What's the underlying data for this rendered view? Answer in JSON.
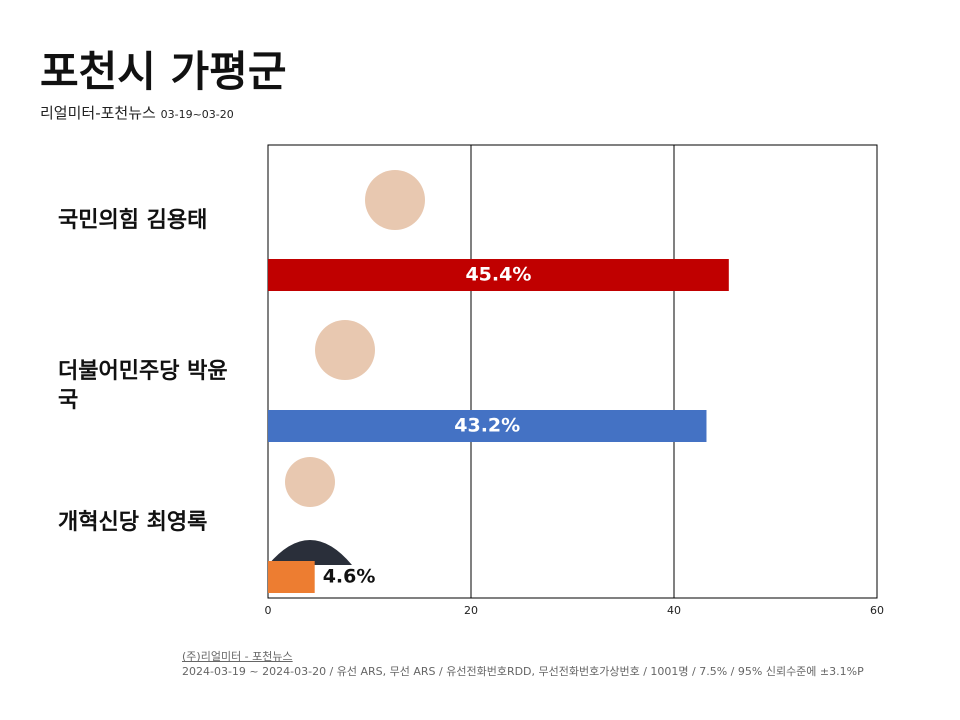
{
  "chart_data": {
    "type": "hbar",
    "title": "포천시 가평군",
    "subtitle": "리얼미터-포천뉴스",
    "date_range": "03-19~03-20",
    "categories": [
      "국민의힘 김용태",
      "더불어민주당 박윤국",
      "개혁신당 최영록"
    ],
    "values": [
      45.4,
      43.2,
      4.6
    ],
    "value_labels": [
      "45.4%",
      "43.2%",
      "4.6%"
    ],
    "colors": [
      "#c00000",
      "#4472c4",
      "#ed7d31"
    ],
    "xlim": [
      0,
      60
    ],
    "xticks": [
      0,
      20,
      40,
      60
    ],
    "grid": true,
    "source": "(주)리얼미터 - 포천뉴스",
    "note": "2024-03-19 ~ 2024-03-20 / 유선 ARS, 무선 ARS / 유선전화번호RDD, 무선전화번호가상번호 / 1001명 / 7.5% / 95% 신뢰수준에 ±3.1%P"
  }
}
